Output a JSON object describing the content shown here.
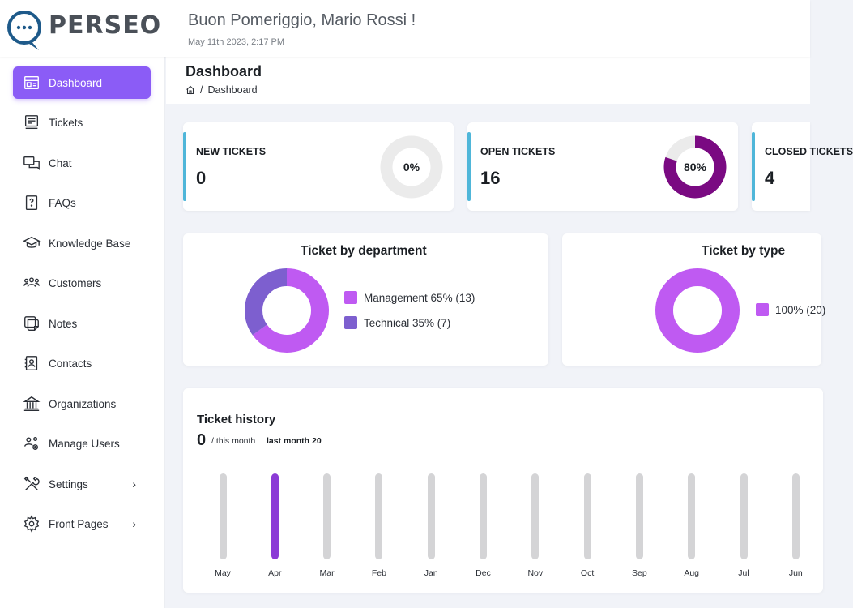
{
  "header": {
    "brand": "PERSEO",
    "greeting": "Buon Pomeriggio, Mario Rossi !",
    "datetime": "May 11th 2023, 2:17 PM"
  },
  "sidebar": {
    "items": [
      {
        "label": "Dashboard",
        "icon": "dashboard-icon",
        "active": true
      },
      {
        "label": "Tickets",
        "icon": "tickets-icon"
      },
      {
        "label": "Chat",
        "icon": "chat-icon"
      },
      {
        "label": "FAQs",
        "icon": "faq-icon"
      },
      {
        "label": "Knowledge Base",
        "icon": "graduation-cap-icon"
      },
      {
        "label": "Customers",
        "icon": "customers-icon"
      },
      {
        "label": "Notes",
        "icon": "notes-icon"
      },
      {
        "label": "Contacts",
        "icon": "contacts-icon"
      },
      {
        "label": "Organizations",
        "icon": "bank-icon"
      },
      {
        "label": "Manage Users",
        "icon": "manage-users-icon"
      },
      {
        "label": "Settings",
        "icon": "tools-icon",
        "expandable": true
      },
      {
        "label": "Front Pages",
        "icon": "gear-icon",
        "expandable": true
      }
    ]
  },
  "page": {
    "title": "Dashboard",
    "breadcrumb": {
      "sep": "/",
      "current": "Dashboard"
    }
  },
  "stats": [
    {
      "label": "NEW TICKETS",
      "value": "0",
      "percent_label": "0%",
      "percent": 0,
      "ring_color": "#7a0a82"
    },
    {
      "label": "OPEN TICKETS",
      "value": "16",
      "percent_label": "80%",
      "percent": 80,
      "ring_color": "#7a0a82"
    },
    {
      "label": "CLOSED TICKETS",
      "value": "4"
    }
  ],
  "charts": {
    "department": {
      "title": "Ticket by department",
      "legend": [
        "Management 65% (13)",
        "Technical 35% (7)"
      ],
      "colors": [
        "#bf5af2",
        "#7d5fcf"
      ]
    },
    "type": {
      "title": "Ticket by type",
      "legend": [
        "100% (20)"
      ],
      "colors": [
        "#bf5af2"
      ]
    }
  },
  "history": {
    "title": "Ticket history",
    "count": "0",
    "suffix": "/ this month",
    "last_month": "last month 20",
    "highlight_color": "#8b3bd6",
    "bar_color": "#d4d4d6"
  },
  "chart_data": [
    {
      "type": "pie",
      "title": "Ticket by department",
      "categories": [
        "Management",
        "Technical"
      ],
      "values": [
        13,
        7
      ],
      "percents": [
        65,
        35
      ],
      "colors": [
        "#bf5af2",
        "#7d5fcf"
      ]
    },
    {
      "type": "pie",
      "title": "Ticket by type",
      "categories": [
        ""
      ],
      "values": [
        20
      ],
      "percents": [
        100
      ],
      "colors": [
        "#bf5af2"
      ]
    },
    {
      "type": "bar",
      "title": "Ticket history",
      "categories": [
        "May",
        "Apr",
        "Mar",
        "Feb",
        "Jan",
        "Dec",
        "Nov",
        "Oct",
        "Sep",
        "Aug",
        "Jul",
        "Jun"
      ],
      "highlighted": [
        "Apr"
      ],
      "colors": {
        "highlight": "#8b3bd6",
        "default": "#d4d4d6"
      }
    }
  ]
}
